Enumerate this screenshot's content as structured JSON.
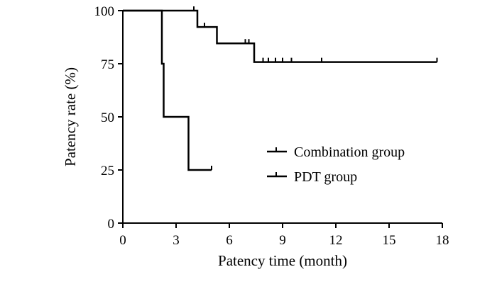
{
  "chart_data": {
    "type": "line",
    "xlabel": "Patency time (month)",
    "ylabel": "Patency rate (%)",
    "xlim": [
      0,
      18
    ],
    "ylim": [
      0,
      100
    ],
    "x_ticks": [
      "0",
      "3",
      "6",
      "9",
      "12",
      "15",
      "18"
    ],
    "y_ticks": [
      "0",
      "25",
      "50",
      "75",
      "100"
    ],
    "grid": false,
    "legend_position": "right-middle",
    "series": [
      {
        "name": "Combination group",
        "color": "#000000",
        "steps": [
          [
            0,
            100
          ],
          [
            4.2,
            92.3
          ],
          [
            5.3,
            84.6
          ],
          [
            7.4,
            75.8
          ],
          [
            17.7,
            75.8
          ]
        ],
        "censored": [
          [
            4.0,
            100
          ],
          [
            4.6,
            92.3
          ],
          [
            6.9,
            84.6
          ],
          [
            7.1,
            84.6
          ],
          [
            7.9,
            75.8
          ],
          [
            8.2,
            75.8
          ],
          [
            8.6,
            75.8
          ],
          [
            9.0,
            75.8
          ],
          [
            9.5,
            75.8
          ],
          [
            11.2,
            75.8
          ],
          [
            17.7,
            75.8
          ]
        ]
      },
      {
        "name": "PDT group",
        "color": "#000000",
        "steps": [
          [
            0,
            100
          ],
          [
            2.2,
            75
          ],
          [
            2.3,
            50
          ],
          [
            3.7,
            25
          ],
          [
            5.0,
            25
          ]
        ],
        "censored": [
          [
            5.0,
            25
          ]
        ]
      }
    ]
  }
}
